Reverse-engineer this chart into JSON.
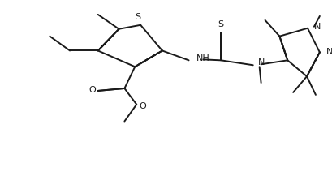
{
  "background": "#ffffff",
  "line_color": "#1a1a1a",
  "lw": 1.4,
  "dbo": 0.012,
  "fig_width": 4.1,
  "fig_height": 2.12,
  "dpi": 100,
  "xlim": [
    0,
    410
  ],
  "ylim": [
    0,
    212
  ]
}
